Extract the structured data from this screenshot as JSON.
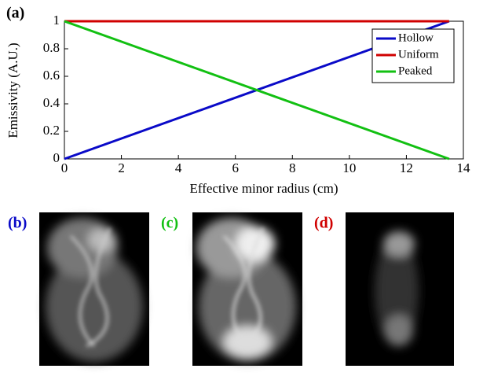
{
  "chart_data": {
    "type": "line",
    "panel_label": "(a)",
    "x_label": "Effective minor radius (cm)",
    "y_label": "Emissivity (A.U.)",
    "x": [
      0,
      13.5
    ],
    "series": [
      {
        "name": "Hollow",
        "color": "#0a0ac8",
        "values": [
          0,
          1
        ]
      },
      {
        "name": "Uniform",
        "color": "#d00000",
        "values": [
          1,
          1
        ]
      },
      {
        "name": "Peaked",
        "color": "#12c012",
        "values": [
          1,
          0
        ]
      }
    ],
    "xlim": [
      0,
      14
    ],
    "xticks": [
      0,
      2,
      4,
      6,
      8,
      10,
      12,
      14
    ],
    "ylim": [
      0,
      1
    ],
    "yticks": [
      0,
      0.2,
      0.4,
      0.6,
      0.8,
      1
    ],
    "legend": "top-right"
  },
  "panels": [
    {
      "label": "(b)",
      "color": "#0a0ac8"
    },
    {
      "label": "(c)",
      "color": "#12c012"
    },
    {
      "label": "(d)",
      "color": "#d00000"
    }
  ]
}
